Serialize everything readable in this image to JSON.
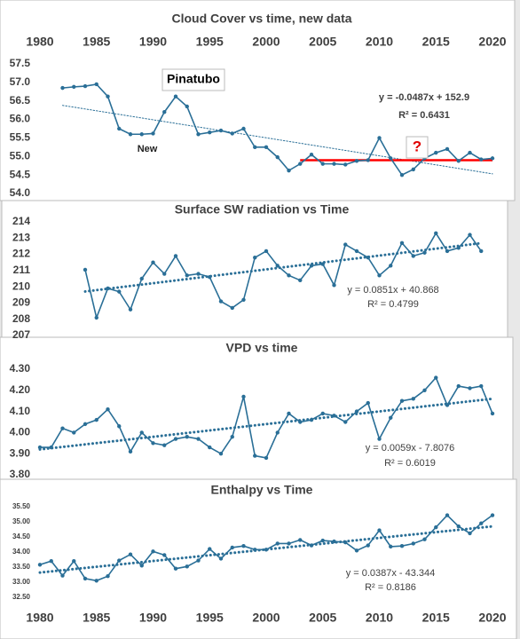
{
  "chart_data": [
    {
      "type": "line",
      "title": "Cloud Cover vs time, new data",
      "color": "#2a6f97",
      "xlim": [
        1980,
        2020
      ],
      "xticks": [
        1980,
        1985,
        1990,
        1995,
        2000,
        2005,
        2010,
        2015,
        2020
      ],
      "ylim": [
        54.0,
        57.5
      ],
      "yticks": [
        {
          "value": 54,
          "label": "54.0"
        },
        54.5,
        {
          "value": 55,
          "label": "55.0"
        },
        55.5,
        {
          "value": 56,
          "label": "56.0"
        },
        56.5,
        {
          "value": 57,
          "label": "57.0"
        },
        57.5
      ],
      "x": [
        1982,
        1983,
        1984,
        1985,
        1986,
        1987,
        1988,
        1989,
        1990,
        1991,
        1992,
        1993,
        1994,
        1995,
        1996,
        1997,
        1998,
        1999,
        2000,
        2001,
        2002,
        2003,
        2004,
        2005,
        2006,
        2007,
        2008,
        2009,
        2010,
        2011,
        2012,
        2013,
        2014,
        2015,
        2016,
        2017,
        2018,
        2019,
        2020
      ],
      "values": [
        56.85,
        56.88,
        56.9,
        56.95,
        56.62,
        55.75,
        55.6,
        55.6,
        55.62,
        56.2,
        56.62,
        56.35,
        55.6,
        55.65,
        55.7,
        55.62,
        55.75,
        55.25,
        55.25,
        54.98,
        54.62,
        54.8,
        55.05,
        54.8,
        54.8,
        54.78,
        54.88,
        54.9,
        55.5,
        54.95,
        54.5,
        54.65,
        54.95,
        55.1,
        55.2,
        54.88,
        55.1,
        54.92,
        54.95
      ],
      "trendline": {
        "x": [
          1982,
          2020
        ],
        "y": [
          56.38,
          54.53
        ]
      },
      "reference_line": {
        "x": [
          2003,
          2020
        ],
        "y": 54.9,
        "color": "#ff0000"
      },
      "annotations": [
        "Pinatubo",
        "New",
        "?",
        "y = -0.0487x + 152.9",
        "R² = 0.6431"
      ]
    },
    {
      "type": "line",
      "title": "Surface SW radiation vs Time",
      "color": "#2a6f97",
      "xlim": [
        1980,
        2020
      ],
      "ylim": [
        207,
        214
      ],
      "yticks": [
        207,
        208,
        209,
        210,
        211,
        212,
        213,
        214
      ],
      "x": [
        1984,
        1985,
        1986,
        1987,
        1988,
        1989,
        1990,
        1991,
        1992,
        1993,
        1994,
        1995,
        1996,
        1997,
        1998,
        1999,
        2000,
        2001,
        2002,
        2003,
        2004,
        2005,
        2006,
        2007,
        2008,
        2009,
        2010,
        2011,
        2012,
        2013,
        2014,
        2015,
        2016,
        2017,
        2018,
        2019
      ],
      "values": [
        211.05,
        208.1,
        209.9,
        209.7,
        208.6,
        210.5,
        211.5,
        210.8,
        211.9,
        210.7,
        210.8,
        210.6,
        209.1,
        208.7,
        209.2,
        211.8,
        212.2,
        211.3,
        210.7,
        210.4,
        211.3,
        211.4,
        210.1,
        212.6,
        212.2,
        211.8,
        210.7,
        211.3,
        212.7,
        211.9,
        212.1,
        213.3,
        212.2,
        212.4,
        213.2,
        212.2
      ],
      "trendline": {
        "x": [
          1984,
          2019
        ],
        "y": [
          209.71,
          212.69
        ]
      },
      "annotations": [
        "y = 0.0851x + 40.868",
        "R² = 0.4799"
      ]
    },
    {
      "type": "line",
      "title": "VPD vs time",
      "color": "#2a6f97",
      "xlim": [
        1980,
        2020
      ],
      "ylim": [
        3.8,
        4.3
      ],
      "yticks": [
        {
          "value": 3.8,
          "label": "3.80"
        },
        {
          "value": 3.9,
          "label": "3.90"
        },
        {
          "value": 4.0,
          "label": "4.00"
        },
        {
          "value": 4.1,
          "label": "4.10"
        },
        {
          "value": 4.2,
          "label": "4.20"
        },
        {
          "value": 4.3,
          "label": "4.30"
        }
      ],
      "x": [
        1980,
        1981,
        1982,
        1983,
        1984,
        1985,
        1986,
        1987,
        1988,
        1989,
        1990,
        1991,
        1992,
        1993,
        1994,
        1995,
        1996,
        1997,
        1998,
        1999,
        2000,
        2001,
        2002,
        2003,
        2004,
        2005,
        2006,
        2007,
        2008,
        2009,
        2010,
        2011,
        2012,
        2013,
        2014,
        2015,
        2016,
        2017,
        2018,
        2019,
        2020
      ],
      "values": [
        3.93,
        3.93,
        4.02,
        4.0,
        4.04,
        4.06,
        4.11,
        4.03,
        3.91,
        4.0,
        3.95,
        3.94,
        3.97,
        3.98,
        3.97,
        3.93,
        3.9,
        3.98,
        4.17,
        3.89,
        3.88,
        4.0,
        4.09,
        4.05,
        4.06,
        4.09,
        4.08,
        4.05,
        4.1,
        4.14,
        3.97,
        4.07,
        4.15,
        4.16,
        4.2,
        4.26,
        4.13,
        4.22,
        4.21,
        4.22,
        4.09
      ],
      "trendline": {
        "x": [
          1980,
          2020
        ],
        "y": [
          3.92,
          4.16
        ]
      },
      "annotations": [
        "y = 0.0059x - 7.8076",
        "R² = 0.6019"
      ]
    },
    {
      "type": "line",
      "title": "Enthalpy vs Time",
      "color": "#2a6f97",
      "xlim": [
        1980,
        2020
      ],
      "xticks": [
        1980,
        1985,
        1990,
        1995,
        2000,
        2005,
        2010,
        2015,
        2020
      ],
      "ylim": [
        32.5,
        35.5
      ],
      "yticks": [
        {
          "value": 32.5,
          "label": "32.50"
        },
        {
          "value": 33,
          "label": "33.00"
        },
        {
          "value": 33.5,
          "label": "33.50"
        },
        {
          "value": 34,
          "label": "34.00"
        },
        {
          "value": 34.5,
          "label": "34.50"
        },
        {
          "value": 35,
          "label": "35.00"
        },
        {
          "value": 35.5,
          "label": "35.50"
        }
      ],
      "x": [
        1980,
        1981,
        1982,
        1983,
        1984,
        1985,
        1986,
        1987,
        1988,
        1989,
        1990,
        1991,
        1992,
        1993,
        1994,
        1995,
        1996,
        1997,
        1998,
        1999,
        2000,
        2001,
        2002,
        2003,
        2004,
        2005,
        2006,
        2007,
        2008,
        2009,
        2010,
        2011,
        2012,
        2013,
        2014,
        2015,
        2016,
        2017,
        2018,
        2019,
        2020
      ],
      "values": [
        33.58,
        33.7,
        33.22,
        33.7,
        33.12,
        33.05,
        33.2,
        33.72,
        33.92,
        33.55,
        34.02,
        33.9,
        33.45,
        33.52,
        33.72,
        34.1,
        33.78,
        34.15,
        34.2,
        34.08,
        34.08,
        34.28,
        34.28,
        34.4,
        34.22,
        34.38,
        34.35,
        34.32,
        34.05,
        34.22,
        34.72,
        34.18,
        34.2,
        34.28,
        34.42,
        34.82,
        35.22,
        34.85,
        34.62,
        34.95,
        35.22
      ],
      "trendline": {
        "x": [
          1980,
          2020
        ],
        "y": [
          33.32,
          34.85
        ]
      },
      "annotations": [
        "y = 0.0387x - 43.344",
        "R² = 0.8186"
      ]
    }
  ]
}
